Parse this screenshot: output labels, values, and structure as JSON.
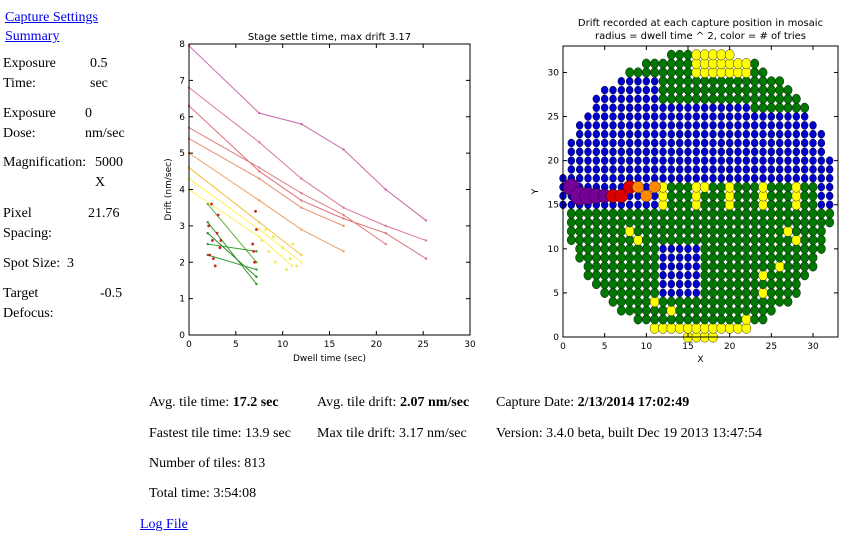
{
  "sidebar": {
    "links": [
      "Capture Settings",
      "Summary"
    ],
    "props": [
      {
        "k1": "Exposure",
        "k2": "Time:",
        "v1": "0.5",
        "v2": "sec"
      },
      {
        "k1": "Exposure",
        "k2": "Dose:",
        "v1": "0",
        "v2": "nm/sec"
      },
      {
        "k1": "Magnification:",
        "k2": "",
        "v1": "5000",
        "v2": "X"
      },
      {
        "k1": "Pixel",
        "k2": "Spacing:",
        "v1": "21.76",
        "v2": ""
      },
      {
        "k1": "Spot Size:",
        "k2": "",
        "v1": "3",
        "v2": ""
      },
      {
        "k1": "Target",
        "k2": "Defocus:",
        "v1": "-0.5",
        "v2": ""
      }
    ]
  },
  "chart_data": [
    {
      "type": "line",
      "title": "Stage settle time, max drift 3.17",
      "xlabel": "Dwell time (sec)",
      "ylabel": "Drift (nm/sec)",
      "xlim": [
        0,
        30
      ],
      "ylim": [
        0,
        8
      ],
      "xticks": [
        0,
        5,
        10,
        15,
        20,
        25,
        30
      ],
      "yticks": [
        0,
        1,
        2,
        3,
        4,
        5,
        6,
        7,
        8
      ],
      "grid": false,
      "series": [
        {
          "color": "#cc66aa",
          "x": [
            0,
            7.5,
            12,
            16.5,
            21,
            25.3
          ],
          "y": [
            7.95,
            6.1,
            5.8,
            5.1,
            4.0,
            3.15
          ]
        },
        {
          "color": "#dd7799",
          "x": [
            0,
            7.5,
            12,
            16.5,
            21,
            25.3
          ],
          "y": [
            6.8,
            5.3,
            4.3,
            3.5,
            3.0,
            2.6
          ]
        },
        {
          "color": "#e0707a",
          "x": [
            0,
            7.5,
            12,
            16.5,
            21,
            25.3
          ],
          "y": [
            6.3,
            4.5,
            3.7,
            3.2,
            2.8,
            2.1
          ]
        },
        {
          "color": "#e08080",
          "x": [
            0,
            7.5,
            12,
            16.5,
            21
          ],
          "y": [
            5.7,
            4.6,
            3.9,
            3.3,
            2.5
          ]
        },
        {
          "color": "#e89070",
          "x": [
            0,
            7.5,
            12,
            16.5
          ],
          "y": [
            5.4,
            4.3,
            3.5,
            3.0
          ]
        },
        {
          "color": "#f0a060",
          "x": [
            0,
            7.5,
            12,
            16.5
          ],
          "y": [
            5.0,
            3.7,
            2.9,
            2.3
          ]
        },
        {
          "color": "#f4c040",
          "x": [
            0,
            7.5,
            12
          ],
          "y": [
            4.6,
            3.1,
            2.2
          ]
        },
        {
          "color": "#ffee55",
          "x": [
            0,
            7.5,
            12
          ],
          "y": [
            4.3,
            2.9,
            2.0
          ]
        },
        {
          "color": "#ffee55",
          "x": [
            0,
            7.5,
            11
          ],
          "y": [
            4.0,
            2.7,
            1.9
          ]
        },
        {
          "color": "#66aa33",
          "x": [
            2,
            7.2
          ],
          "y": [
            3.6,
            2.0
          ]
        },
        {
          "color": "#339922",
          "x": [
            2,
            7.2
          ],
          "y": [
            3.1,
            1.4
          ]
        },
        {
          "color": "#228822",
          "x": [
            2,
            7.2
          ],
          "y": [
            2.8,
            1.6
          ]
        },
        {
          "color": "#2a9a2a",
          "x": [
            2,
            7.2
          ],
          "y": [
            2.5,
            2.3
          ]
        },
        {
          "color": "#339933",
          "x": [
            2,
            7.2
          ],
          "y": [
            2.2,
            1.8
          ]
        }
      ],
      "scatter": [
        {
          "color": "#cc2222",
          "x": [
            2.2,
            2.5,
            2.8,
            3.0,
            3.3,
            2.1,
            2.6,
            3.1,
            6.8,
            7.0,
            7.2,
            6.9,
            7.1,
            3.4,
            2.4
          ],
          "y": [
            2.2,
            2.6,
            1.9,
            2.8,
            2.4,
            3.0,
            2.1,
            3.3,
            2.5,
            2.0,
            2.9,
            2.3,
            3.4,
            2.6,
            3.6
          ]
        },
        {
          "color": "#eeee44",
          "x": [
            7.8,
            8.5,
            9.2,
            10.0,
            10.8,
            11.5,
            9.0,
            10.4,
            11.1,
            8.2
          ],
          "y": [
            2.6,
            2.3,
            2.0,
            2.4,
            2.1,
            1.9,
            2.7,
            1.8,
            2.5,
            2.9
          ]
        }
      ]
    },
    {
      "type": "scatter",
      "title": "Drift recorded at each capture position in mosaic",
      "subtitle": "radius = dwell time ^ 2, color = # of tries",
      "xlabel": "X",
      "ylabel": "Y",
      "xlim": [
        0,
        33
      ],
      "ylim": [
        0,
        33
      ],
      "xticks": [
        0,
        5,
        10,
        15,
        20,
        25,
        30
      ],
      "yticks": [
        0,
        5,
        10,
        15,
        20,
        25,
        30
      ],
      "grid": false,
      "circle": {
        "cx": 16.2,
        "cy": 16.2,
        "r": 16.3
      },
      "colors": {
        "blue": "#0000cc",
        "green": "#007700",
        "yellow": "#ffff00",
        "red": "#dd0000",
        "orange": "#ff8800",
        "purple": "#770099"
      },
      "special": [
        {
          "x": 1,
          "y": 17,
          "color": "purple",
          "r": 1.0
        },
        {
          "x": 2,
          "y": 16,
          "color": "purple",
          "r": 1.1
        },
        {
          "x": 3,
          "y": 16,
          "color": "purple",
          "r": 1.0
        },
        {
          "x": 4,
          "y": 16,
          "color": "purple",
          "r": 0.9
        },
        {
          "x": 5,
          "y": 16,
          "color": "purple",
          "r": 0.8
        },
        {
          "x": 6,
          "y": 16,
          "color": "red",
          "r": 0.8
        },
        {
          "x": 7,
          "y": 16,
          "color": "red",
          "r": 0.8
        },
        {
          "x": 8,
          "y": 17,
          "color": "red",
          "r": 0.8
        },
        {
          "x": 9,
          "y": 17,
          "color": "orange",
          "r": 0.7
        },
        {
          "x": 10,
          "y": 16,
          "color": "orange",
          "r": 0.7
        },
        {
          "x": 11,
          "y": 17,
          "color": "orange",
          "r": 0.7
        }
      ]
    }
  ],
  "stats": {
    "avg_tile_time_label": "Avg. tile time:",
    "avg_tile_time": "17.2 sec",
    "avg_tile_drift_label": "Avg. tile drift:",
    "avg_tile_drift": "2.07 nm/sec",
    "capture_date_label": "Capture Date:",
    "capture_date": "2/13/2014 17:02:49",
    "fastest": "Fastest tile time: 13.9 sec",
    "max_drift": "Max tile drift: 3.17 nm/sec",
    "version": "Version: 3.4.0 beta, built Dec 19 2013 13:47:54",
    "num_tiles": "Number of tiles: 813",
    "total_time": "Total time: 3:54:08"
  },
  "log_file": "Log File"
}
